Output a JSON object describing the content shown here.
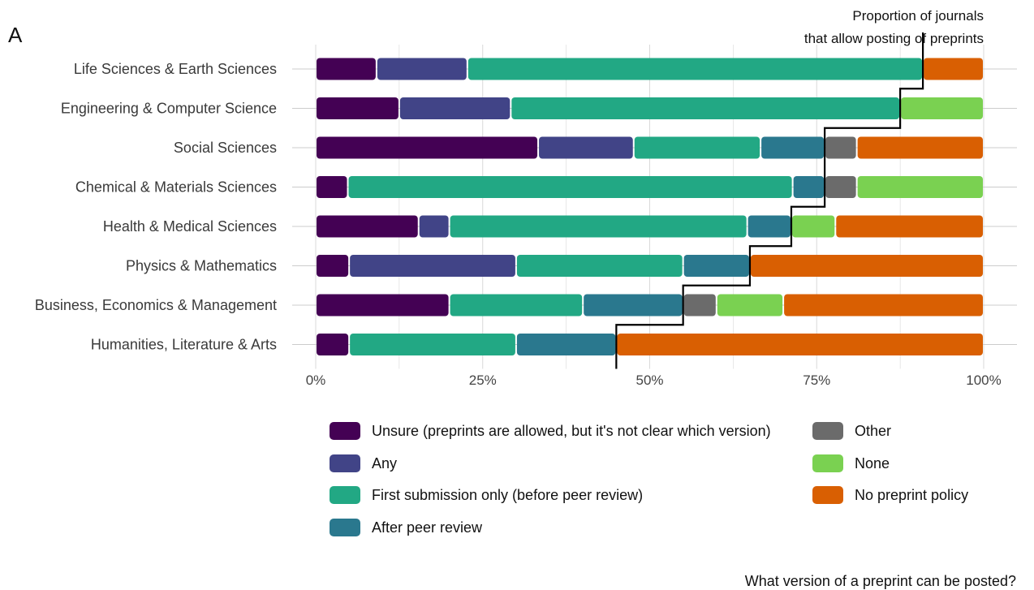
{
  "panel_letter": "A",
  "annotation": {
    "line1": "Proportion of journals",
    "line2": "that allow posting of preprints"
  },
  "caption": "What version of a preprint can be posted?",
  "colors": {
    "unsure": "#440154",
    "any": "#414487",
    "first": "#22a884",
    "after": "#2a788e",
    "other": "#6b6b6b",
    "none": "#7ad151",
    "no_policy": "#d95f02"
  },
  "legend": [
    {
      "key": "unsure",
      "label": "Unsure (preprints are allowed, but it's not clear which version)"
    },
    {
      "key": "any",
      "label": "Any"
    },
    {
      "key": "first",
      "label": "First submission only (before peer review)"
    },
    {
      "key": "after",
      "label": "After peer review"
    },
    {
      "key": "other",
      "label": "Other"
    },
    {
      "key": "none",
      "label": "None"
    },
    {
      "key": "no_policy",
      "label": "No preprint policy"
    }
  ],
  "chart_data": {
    "type": "bar",
    "orientation": "horizontal-stacked",
    "xlim": [
      0,
      100
    ],
    "x_ticks": [
      "0%",
      "25%",
      "50%",
      "75%",
      "100%"
    ],
    "categories": [
      "Life Sciences & Earth Sciences",
      "Engineering & Computer Science",
      "Social Sciences",
      "Chemical & Materials Sciences",
      "Health & Medical Sciences",
      "Physics & Mathematics",
      "Business, Economics & Management",
      "Humanities, Literature & Arts"
    ],
    "series": [
      {
        "name": "Unsure (preprints are allowed, but it's not clear which version)",
        "key": "unsure",
        "values": [
          9.1,
          12.5,
          33.3,
          4.8,
          15.4,
          5.0,
          20.0,
          5.0
        ]
      },
      {
        "name": "Any",
        "key": "any",
        "values": [
          13.6,
          16.7,
          14.3,
          0,
          4.6,
          25.0,
          0,
          0
        ]
      },
      {
        "name": "First submission only (before peer review)",
        "key": "first",
        "values": [
          68.2,
          58.3,
          19.0,
          66.6,
          44.6,
          25.0,
          20.0,
          25.0
        ]
      },
      {
        "name": "After peer review",
        "key": "after",
        "values": [
          0,
          0,
          9.6,
          4.8,
          6.6,
          10.0,
          15.0,
          15.0
        ]
      },
      {
        "name": "Other",
        "key": "other",
        "values": [
          0,
          0,
          4.8,
          4.8,
          0,
          0,
          5.0,
          0
        ]
      },
      {
        "name": "None",
        "key": "none",
        "values": [
          0,
          12.5,
          0,
          19.0,
          6.6,
          0,
          10.0,
          0
        ]
      },
      {
        "name": "No preprint policy",
        "key": "no_policy",
        "values": [
          9.1,
          0,
          19.0,
          0,
          22.2,
          35.0,
          30.0,
          55.0
        ]
      }
    ],
    "allow_proportion": [
      90.9,
      87.5,
      76.2,
      76.2,
      71.2,
      65.0,
      55.0,
      45.0
    ],
    "grid": true
  }
}
